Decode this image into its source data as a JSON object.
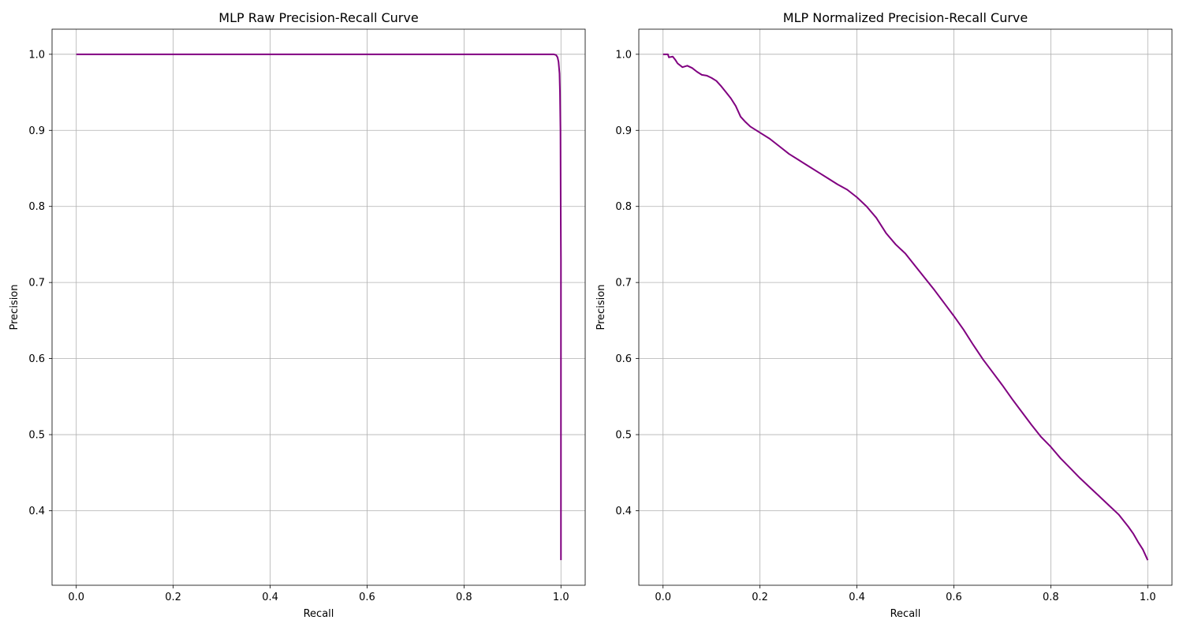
{
  "chart_data": [
    {
      "type": "line",
      "title": "MLP Raw Precision-Recall Curve",
      "xlabel": "Recall",
      "ylabel": "Precision",
      "xlim": [
        -0.05,
        1.05
      ],
      "ylim": [
        0.302,
        1.033
      ],
      "xticks": [
        0.0,
        0.2,
        0.4,
        0.6,
        0.8,
        1.0
      ],
      "xtick_labels": [
        "0.0",
        "0.2",
        "0.4",
        "0.6",
        "0.8",
        "1.0"
      ],
      "yticks": [
        0.4,
        0.5,
        0.6,
        0.7,
        0.8,
        0.9,
        1.0
      ],
      "ytick_labels": [
        "0.4",
        "0.5",
        "0.6",
        "0.7",
        "0.8",
        "0.9",
        "1.0"
      ],
      "grid": true,
      "series": [
        {
          "color": "#800080",
          "x": [
            0.0,
            0.1,
            0.2,
            0.3,
            0.4,
            0.5,
            0.6,
            0.7,
            0.8,
            0.9,
            0.95,
            0.97,
            0.98,
            0.985,
            0.99,
            0.993,
            0.995,
            0.997,
            0.998,
            0.999,
            0.9995,
            1.0,
            1.0,
            1.0
          ],
          "y": [
            1.0,
            1.0,
            1.0,
            1.0,
            1.0,
            1.0,
            1.0,
            1.0,
            1.0,
            1.0,
            1.0,
            1.0,
            1.0,
            1.0,
            0.999,
            0.996,
            0.99,
            0.975,
            0.95,
            0.9,
            0.8,
            0.73,
            0.69,
            0.335
          ]
        }
      ]
    },
    {
      "type": "line",
      "title": "MLP Normalized Precision-Recall Curve",
      "xlabel": "Recall",
      "ylabel": "Precision",
      "xlim": [
        -0.05,
        1.05
      ],
      "ylim": [
        0.302,
        1.033
      ],
      "xticks": [
        0.0,
        0.2,
        0.4,
        0.6,
        0.8,
        1.0
      ],
      "xtick_labels": [
        "0.0",
        "0.2",
        "0.4",
        "0.6",
        "0.8",
        "1.0"
      ],
      "yticks": [
        0.4,
        0.5,
        0.6,
        0.7,
        0.8,
        0.9,
        1.0
      ],
      "ytick_labels": [
        "0.4",
        "0.5",
        "0.6",
        "0.7",
        "0.8",
        "0.9",
        "1.0"
      ],
      "grid": true,
      "series": [
        {
          "color": "#800080",
          "x": [
            0.0,
            0.005,
            0.01,
            0.012,
            0.02,
            0.025,
            0.03,
            0.04,
            0.05,
            0.06,
            0.07,
            0.08,
            0.09,
            0.1,
            0.11,
            0.12,
            0.13,
            0.14,
            0.15,
            0.16,
            0.17,
            0.18,
            0.2,
            0.22,
            0.24,
            0.26,
            0.28,
            0.3,
            0.32,
            0.34,
            0.36,
            0.38,
            0.4,
            0.42,
            0.44,
            0.46,
            0.48,
            0.5,
            0.52,
            0.54,
            0.56,
            0.58,
            0.6,
            0.62,
            0.64,
            0.66,
            0.68,
            0.7,
            0.72,
            0.74,
            0.76,
            0.78,
            0.8,
            0.82,
            0.84,
            0.86,
            0.88,
            0.9,
            0.92,
            0.94,
            0.96,
            0.97,
            0.98,
            0.99,
            1.0
          ],
          "y": [
            1.0,
            1.0,
            1.0,
            0.996,
            0.997,
            0.993,
            0.988,
            0.983,
            0.985,
            0.982,
            0.977,
            0.973,
            0.972,
            0.969,
            0.965,
            0.958,
            0.95,
            0.942,
            0.932,
            0.918,
            0.911,
            0.905,
            0.897,
            0.889,
            0.879,
            0.869,
            0.861,
            0.853,
            0.845,
            0.837,
            0.829,
            0.822,
            0.812,
            0.8,
            0.785,
            0.765,
            0.75,
            0.738,
            0.722,
            0.706,
            0.69,
            0.673,
            0.656,
            0.638,
            0.618,
            0.599,
            0.582,
            0.565,
            0.547,
            0.53,
            0.513,
            0.497,
            0.484,
            0.469,
            0.456,
            0.443,
            0.431,
            0.419,
            0.407,
            0.395,
            0.379,
            0.37,
            0.359,
            0.349,
            0.335
          ]
        }
      ]
    }
  ]
}
